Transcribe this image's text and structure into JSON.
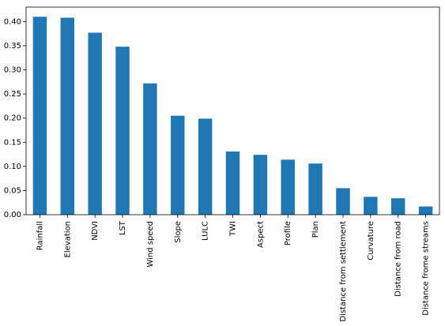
{
  "chart_data": {
    "type": "bar",
    "title": "",
    "xlabel": "",
    "ylabel": "",
    "categories": [
      "Rainfall",
      "Elevation",
      "NDVI",
      "LST",
      "Wind speed",
      "Slope",
      "LULC",
      "TWI",
      "Aspect",
      "Profile",
      "Plan",
      "Distance from settlement",
      "Curvature",
      "Distance from road",
      "Distance frome streams"
    ],
    "values": [
      0.41,
      0.408,
      0.377,
      0.348,
      0.272,
      0.205,
      0.199,
      0.131,
      0.124,
      0.114,
      0.106,
      0.055,
      0.037,
      0.034,
      0.017
    ],
    "ylim": [
      0,
      0.43
    ],
    "yticks": [
      "0.00",
      "0.05",
      "0.10",
      "0.15",
      "0.20",
      "0.25",
      "0.30",
      "0.35",
      "0.40"
    ],
    "bar_color": "#1f77b4",
    "grid": false,
    "legend": false
  }
}
